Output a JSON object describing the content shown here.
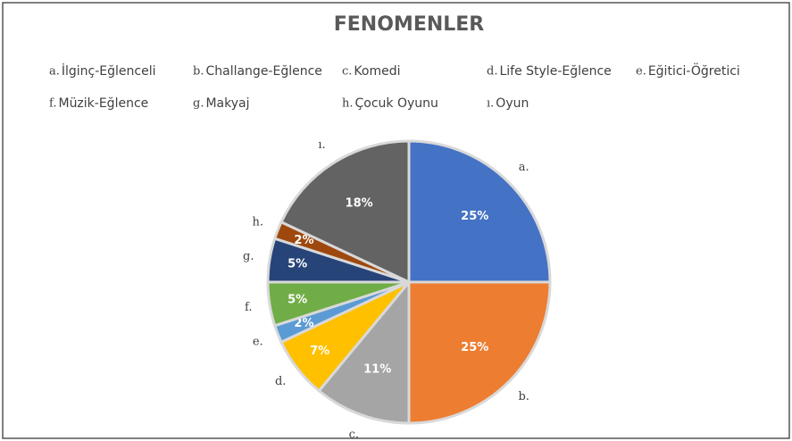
{
  "chart_data": {
    "type": "pie",
    "title": "FENOMENLER",
    "markers": [
      "a.",
      "b.",
      "c.",
      "d.",
      "e.",
      "f.",
      "g.",
      "h.",
      "ı."
    ],
    "categories": [
      "İlginç-Eğlenceli",
      "Challange-Eğlence",
      "Komedi",
      "Life Style-Eğlence",
      "Eğitici-Öğretici",
      "Müzik-Eğlence",
      "Makyaj",
      "Çocuk Oyunu",
      "Oyun"
    ],
    "values": [
      25,
      25,
      11,
      7,
      2,
      5,
      5,
      2,
      18
    ],
    "value_labels": [
      "25%",
      "25%",
      "11%",
      "7%",
      "2%",
      "5%",
      "5%",
      "2%",
      "18%"
    ],
    "colors": [
      "#4472c4",
      "#ed7d31",
      "#a5a5a5",
      "#ffc000",
      "#5b9bd5",
      "#70ad47",
      "#264478",
      "#9e480e",
      "#636363"
    ],
    "legend": "top"
  }
}
